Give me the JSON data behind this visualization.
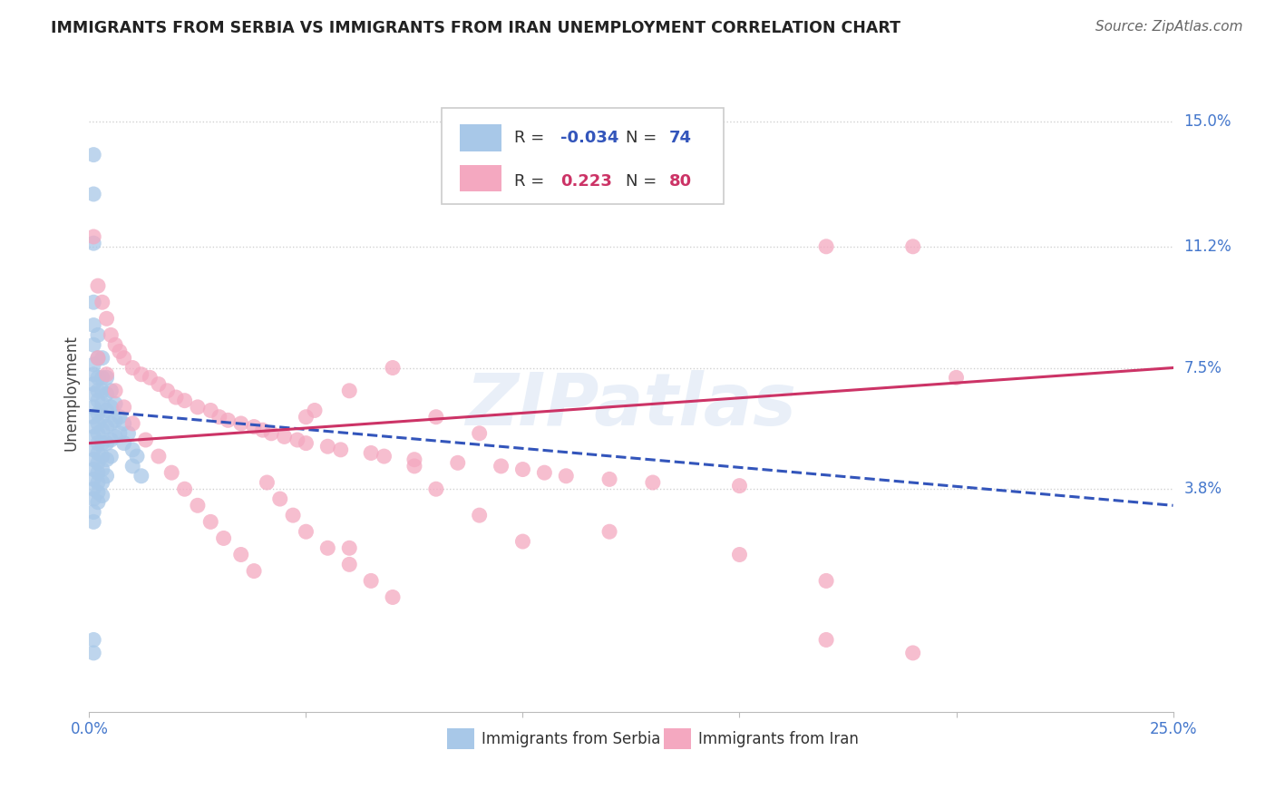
{
  "title": "IMMIGRANTS FROM SERBIA VS IMMIGRANTS FROM IRAN UNEMPLOYMENT CORRELATION CHART",
  "source": "Source: ZipAtlas.com",
  "ylabel": "Unemployment",
  "xmin": 0.0,
  "xmax": 0.25,
  "ymin": -0.03,
  "ymax": 0.165,
  "serbia_R": -0.034,
  "serbia_N": 74,
  "iran_R": 0.223,
  "iran_N": 80,
  "serbia_color": "#a8c8e8",
  "iran_color": "#f4a8c0",
  "serbia_line_color": "#3355bb",
  "iran_line_color": "#cc3366",
  "background_color": "#ffffff",
  "grid_color": "#cccccc",
  "title_color": "#222222",
  "axis_label_color": "#4477cc",
  "ytick_labels": [
    "15.0%",
    "11.2%",
    "7.5%",
    "3.8%"
  ],
  "ytick_values": [
    0.15,
    0.112,
    0.075,
    0.038
  ],
  "serbia_line_x0": 0.0,
  "serbia_line_x1": 0.25,
  "serbia_line_y0": 0.062,
  "serbia_line_y1": 0.033,
  "iran_line_x0": 0.0,
  "iran_line_x1": 0.25,
  "iran_line_y0": 0.052,
  "iran_line_y1": 0.075,
  "serbia_x": [
    0.001,
    0.001,
    0.001,
    0.001,
    0.001,
    0.001,
    0.001,
    0.001,
    0.001,
    0.001,
    0.001,
    0.001,
    0.001,
    0.001,
    0.001,
    0.001,
    0.001,
    0.001,
    0.001,
    0.001,
    0.001,
    0.001,
    0.002,
    0.002,
    0.002,
    0.002,
    0.002,
    0.002,
    0.002,
    0.002,
    0.002,
    0.002,
    0.002,
    0.002,
    0.002,
    0.002,
    0.002,
    0.003,
    0.003,
    0.003,
    0.003,
    0.003,
    0.003,
    0.003,
    0.003,
    0.003,
    0.003,
    0.003,
    0.004,
    0.004,
    0.004,
    0.004,
    0.004,
    0.004,
    0.004,
    0.005,
    0.005,
    0.005,
    0.005,
    0.005,
    0.006,
    0.006,
    0.006,
    0.007,
    0.007,
    0.008,
    0.008,
    0.009,
    0.01,
    0.01,
    0.011,
    0.012,
    0.001,
    0.001
  ],
  "serbia_y": [
    0.14,
    0.128,
    0.113,
    0.095,
    0.088,
    0.082,
    0.076,
    0.073,
    0.07,
    0.067,
    0.063,
    0.06,
    0.057,
    0.054,
    0.05,
    0.047,
    0.044,
    0.041,
    0.038,
    0.035,
    0.031,
    0.028,
    0.085,
    0.078,
    0.072,
    0.068,
    0.065,
    0.061,
    0.058,
    0.055,
    0.052,
    0.049,
    0.046,
    0.043,
    0.04,
    0.037,
    0.034,
    0.078,
    0.072,
    0.068,
    0.064,
    0.06,
    0.056,
    0.052,
    0.048,
    0.044,
    0.04,
    0.036,
    0.072,
    0.067,
    0.062,
    0.057,
    0.052,
    0.047,
    0.042,
    0.068,
    0.063,
    0.058,
    0.053,
    0.048,
    0.064,
    0.059,
    0.054,
    0.06,
    0.055,
    0.058,
    0.052,
    0.055,
    0.05,
    0.045,
    0.048,
    0.042,
    -0.008,
    -0.012
  ],
  "iran_x": [
    0.001,
    0.002,
    0.003,
    0.004,
    0.005,
    0.006,
    0.007,
    0.008,
    0.01,
    0.012,
    0.014,
    0.016,
    0.018,
    0.02,
    0.022,
    0.025,
    0.028,
    0.03,
    0.032,
    0.035,
    0.038,
    0.04,
    0.042,
    0.045,
    0.048,
    0.05,
    0.052,
    0.055,
    0.058,
    0.06,
    0.065,
    0.068,
    0.07,
    0.075,
    0.08,
    0.085,
    0.09,
    0.095,
    0.1,
    0.105,
    0.11,
    0.12,
    0.13,
    0.15,
    0.17,
    0.19,
    0.002,
    0.004,
    0.006,
    0.008,
    0.01,
    0.013,
    0.016,
    0.019,
    0.022,
    0.025,
    0.028,
    0.031,
    0.035,
    0.038,
    0.041,
    0.044,
    0.047,
    0.05,
    0.055,
    0.06,
    0.065,
    0.07,
    0.075,
    0.08,
    0.09,
    0.1,
    0.12,
    0.15,
    0.17,
    0.05,
    0.06,
    0.17,
    0.2,
    0.19
  ],
  "iran_y": [
    0.115,
    0.1,
    0.095,
    0.09,
    0.085,
    0.082,
    0.08,
    0.078,
    0.075,
    0.073,
    0.072,
    0.07,
    0.068,
    0.066,
    0.065,
    0.063,
    0.062,
    0.06,
    0.059,
    0.058,
    0.057,
    0.056,
    0.055,
    0.054,
    0.053,
    0.052,
    0.062,
    0.051,
    0.05,
    0.068,
    0.049,
    0.048,
    0.075,
    0.047,
    0.06,
    0.046,
    0.055,
    0.045,
    0.044,
    0.043,
    0.042,
    0.041,
    0.04,
    0.039,
    0.112,
    0.112,
    0.078,
    0.073,
    0.068,
    0.063,
    0.058,
    0.053,
    0.048,
    0.043,
    0.038,
    0.033,
    0.028,
    0.023,
    0.018,
    0.013,
    0.04,
    0.035,
    0.03,
    0.025,
    0.02,
    0.015,
    0.01,
    0.005,
    0.045,
    0.038,
    0.03,
    0.022,
    0.025,
    0.018,
    0.01,
    0.06,
    0.02,
    -0.008,
    0.072,
    -0.012
  ]
}
